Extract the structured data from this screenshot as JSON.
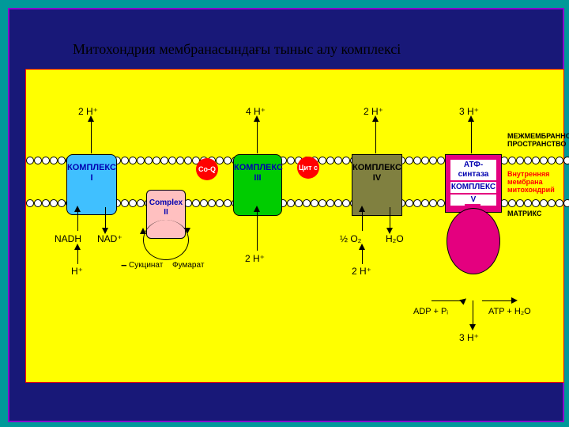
{
  "title": "Митохондрия мембранасындағы тыныс алу комплексі",
  "complexes": {
    "c1": {
      "label": "КОМПЛЕКС\nI"
    },
    "c2": {
      "label": "Complex\nII"
    },
    "c3": {
      "label": "КОМПЛЕКС\nIII"
    },
    "c4": {
      "label": "КОМПЛЕКС\nIV"
    },
    "c5_top": "АТФ-синтаза",
    "c5_mid": "КОМПЛЕКС",
    "c5_bot": "V"
  },
  "carriers": {
    "q": "Co-Q",
    "cyt": "Цит c"
  },
  "protons": {
    "top1": "2 H⁺",
    "top3": "4 H⁺",
    "top4": "2 H⁺",
    "top5": "3 H⁺",
    "bot1a": "NADH",
    "bot1b": "NAD⁺",
    "bot1c": "H⁺",
    "bot2a": "Сукцинат",
    "bot2b": "Фумарат",
    "bot3": "2 H⁺",
    "bot4a": "½ O₂",
    "bot4b": "H₂O",
    "bot4c": "2 H⁺",
    "bot5a": "ADP  +  Pᵢ",
    "bot5b": "ATP  +  H₂O",
    "bot5c": "3 H⁺"
  },
  "regions": {
    "inter": "МЕЖМЕМБРАННОЕ\nПРОСТРАНСТВО",
    "inner": "Внутренняя\nмембрана\nмитохондрий",
    "matrix": "МАТРИКС"
  },
  "colors": {
    "page_bg": "#009999",
    "frame_bg": "#181878",
    "frame_border": "#8800cc",
    "diagram_bg": "#ffff00",
    "c1": "#40c0ff",
    "c2": "#ffc0c0",
    "c3": "#00cc00",
    "c4": "#808040",
    "c5": "#e4007f",
    "carrier": "#ff0000"
  }
}
